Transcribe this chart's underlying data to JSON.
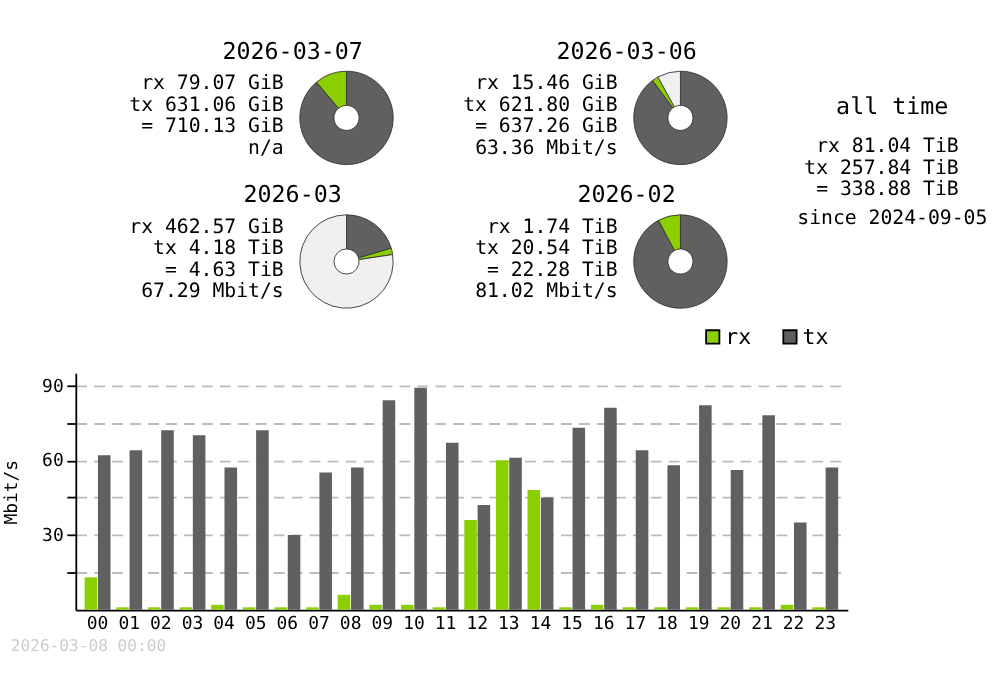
{
  "chart_data": [
    {
      "type": "donut",
      "title": "2026-03-07",
      "categories": [
        null,
        null
      ],
      "values": [
        88.9,
        11.1
      ],
      "colors": [
        "#606060",
        "#8ccf00"
      ],
      "annotations": [
        "rx 79.07 GiB",
        "tx 631.06 GiB",
        "= 710.13 GiB",
        "n/a"
      ]
    },
    {
      "type": "donut",
      "title": "2026-03-06",
      "categories": [
        null,
        null,
        null
      ],
      "values": [
        89.8,
        2.2,
        8
      ],
      "colors": [
        "#606060",
        "#8ccf00",
        "#f0f0f0"
      ],
      "annotations": [
        "rx 15.46 GiB",
        "tx 621.80 GiB",
        "= 637.26 GiB",
        "63.36 Mbit/s"
      ]
    },
    {
      "type": "other",
      "title": "all time",
      "annotations": [
        "rx 81.04 TiB",
        "tx 257.84 TiB",
        "= 338.88 TiB",
        "since 2024-09-05"
      ]
    },
    {
      "type": "donut",
      "title": "2026-03",
      "categories": [
        null,
        null,
        null
      ],
      "values": [
        20.4,
        2.2,
        77.4
      ],
      "colors": [
        "#606060",
        "#8ccf00",
        "#f0f0f0"
      ],
      "annotations": [
        "rx 462.57 GiB",
        "tx 4.18 TiB",
        "= 4.63 TiB",
        "67.29 Mbit/s"
      ]
    },
    {
      "type": "donut",
      "title": "2026-02",
      "categories": [
        null,
        null
      ],
      "values": [
        92.2,
        7.8
      ],
      "colors": [
        "#606060",
        "#8ccf00"
      ],
      "annotations": [
        "rx 1.74 TiB",
        "tx 20.54 TiB",
        "= 22.28 TiB",
        "81.02 Mbit/s"
      ]
    },
    {
      "type": "bar",
      "ylabel": "Mbit/s",
      "categories": [
        "00",
        "01",
        "02",
        "03",
        "04",
        "05",
        "06",
        "07",
        "08",
        "09",
        "10",
        "11",
        "12",
        "13",
        "14",
        "15",
        "16",
        "17",
        "18",
        "19",
        "20",
        "21",
        "22",
        "23"
      ],
      "series": [
        {
          "name": "rx",
          "color": "#8ccf00",
          "values": [
            13,
            1,
            1,
            1,
            2,
            1,
            1,
            1,
            6,
            2,
            2,
            1,
            36,
            60,
            48,
            1,
            2,
            1,
            1,
            1,
            1,
            1,
            2,
            1
          ]
        },
        {
          "name": "tx",
          "color": "#606060",
          "values": [
            62,
            64,
            72,
            70,
            57,
            72,
            30,
            55,
            57,
            84,
            89,
            67,
            42,
            61,
            45,
            73,
            81,
            64,
            58,
            82,
            56,
            78,
            35,
            57
          ]
        }
      ],
      "ylim": [
        0,
        95
      ],
      "yticks": [
        {
          "value": 15,
          "label": null
        },
        30,
        {
          "value": 45,
          "label": null
        },
        60,
        {
          "value": 75,
          "label": null
        },
        90
      ],
      "grid": "y",
      "legend": "top right",
      "annotations": [
        "2026-03-08 00:00"
      ]
    }
  ]
}
